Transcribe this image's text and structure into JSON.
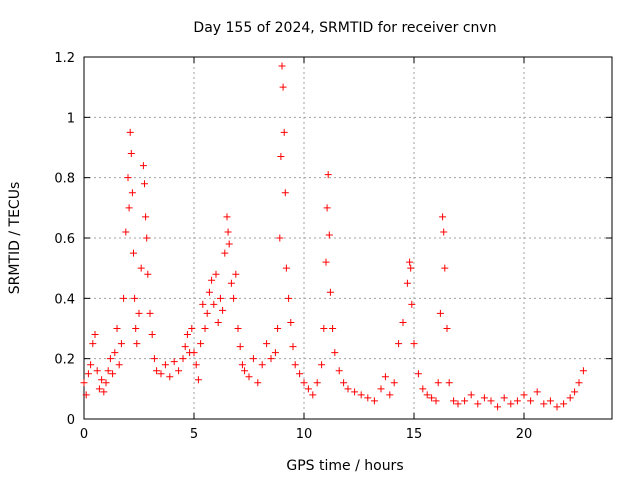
{
  "chart_data": {
    "type": "scatter",
    "title": "Day 155 of 2024, SRMTID for receiver cnvn",
    "xlabel": "GPS time / hours",
    "ylabel": "SRMTID / TECUs",
    "xlim": [
      0,
      24
    ],
    "ylim": [
      0,
      1.2
    ],
    "xticks": [
      0,
      5,
      10,
      15,
      20
    ],
    "yticks": [
      0,
      0.2,
      0.4,
      0.6,
      0.8,
      1.0,
      1.2
    ],
    "xtick_labels": [
      "0",
      "5",
      "10",
      "15",
      "20"
    ],
    "ytick_labels": [
      "0",
      "0.2",
      "0.4",
      "0.6",
      "0.8",
      "1",
      "1.2"
    ],
    "grid": true,
    "marker": "+",
    "color": "#ff0000",
    "series": [
      {
        "name": "SRMTID",
        "points": [
          [
            0.0,
            0.12
          ],
          [
            0.1,
            0.08
          ],
          [
            0.2,
            0.15
          ],
          [
            0.3,
            0.18
          ],
          [
            0.4,
            0.25
          ],
          [
            0.5,
            0.28
          ],
          [
            0.6,
            0.16
          ],
          [
            0.7,
            0.1
          ],
          [
            0.8,
            0.13
          ],
          [
            0.9,
            0.09
          ],
          [
            1.0,
            0.12
          ],
          [
            1.1,
            0.16
          ],
          [
            1.2,
            0.2
          ],
          [
            1.3,
            0.15
          ],
          [
            1.4,
            0.22
          ],
          [
            1.5,
            0.3
          ],
          [
            1.6,
            0.18
          ],
          [
            1.7,
            0.25
          ],
          [
            1.8,
            0.4
          ],
          [
            1.9,
            0.62
          ],
          [
            2.0,
            0.8
          ],
          [
            2.05,
            0.7
          ],
          [
            2.1,
            0.95
          ],
          [
            2.15,
            0.88
          ],
          [
            2.2,
            0.75
          ],
          [
            2.25,
            0.55
          ],
          [
            2.3,
            0.4
          ],
          [
            2.35,
            0.3
          ],
          [
            2.4,
            0.25
          ],
          [
            2.5,
            0.35
          ],
          [
            2.6,
            0.5
          ],
          [
            2.7,
            0.84
          ],
          [
            2.75,
            0.78
          ],
          [
            2.8,
            0.67
          ],
          [
            2.85,
            0.6
          ],
          [
            2.9,
            0.48
          ],
          [
            3.0,
            0.35
          ],
          [
            3.1,
            0.28
          ],
          [
            3.2,
            0.2
          ],
          [
            3.3,
            0.16
          ],
          [
            3.5,
            0.15
          ],
          [
            3.7,
            0.18
          ],
          [
            3.9,
            0.14
          ],
          [
            4.1,
            0.19
          ],
          [
            4.3,
            0.16
          ],
          [
            4.5,
            0.2
          ],
          [
            4.6,
            0.24
          ],
          [
            4.7,
            0.28
          ],
          [
            4.8,
            0.22
          ],
          [
            4.9,
            0.3
          ],
          [
            5.0,
            0.22
          ],
          [
            5.1,
            0.18
          ],
          [
            5.2,
            0.13
          ],
          [
            5.3,
            0.25
          ],
          [
            5.4,
            0.38
          ],
          [
            5.5,
            0.3
          ],
          [
            5.6,
            0.35
          ],
          [
            5.7,
            0.42
          ],
          [
            5.8,
            0.46
          ],
          [
            5.9,
            0.38
          ],
          [
            6.0,
            0.48
          ],
          [
            6.1,
            0.32
          ],
          [
            6.2,
            0.4
          ],
          [
            6.3,
            0.36
          ],
          [
            6.4,
            0.55
          ],
          [
            6.5,
            0.67
          ],
          [
            6.55,
            0.62
          ],
          [
            6.6,
            0.58
          ],
          [
            6.7,
            0.45
          ],
          [
            6.8,
            0.4
          ],
          [
            6.9,
            0.48
          ],
          [
            7.0,
            0.3
          ],
          [
            7.1,
            0.24
          ],
          [
            7.2,
            0.18
          ],
          [
            7.3,
            0.16
          ],
          [
            7.5,
            0.14
          ],
          [
            7.7,
            0.2
          ],
          [
            7.9,
            0.12
          ],
          [
            8.1,
            0.18
          ],
          [
            8.3,
            0.25
          ],
          [
            8.5,
            0.2
          ],
          [
            8.7,
            0.22
          ],
          [
            8.8,
            0.3
          ],
          [
            8.9,
            0.6
          ],
          [
            8.95,
            0.87
          ],
          [
            9.0,
            1.17
          ],
          [
            9.05,
            1.1
          ],
          [
            9.1,
            0.95
          ],
          [
            9.15,
            0.75
          ],
          [
            9.2,
            0.5
          ],
          [
            9.3,
            0.4
          ],
          [
            9.4,
            0.32
          ],
          [
            9.5,
            0.24
          ],
          [
            9.6,
            0.18
          ],
          [
            9.8,
            0.15
          ],
          [
            10.0,
            0.12
          ],
          [
            10.2,
            0.1
          ],
          [
            10.4,
            0.08
          ],
          [
            10.6,
            0.12
          ],
          [
            10.8,
            0.18
          ],
          [
            10.9,
            0.3
          ],
          [
            11.0,
            0.52
          ],
          [
            11.05,
            0.7
          ],
          [
            11.1,
            0.81
          ],
          [
            11.15,
            0.61
          ],
          [
            11.2,
            0.42
          ],
          [
            11.3,
            0.3
          ],
          [
            11.4,
            0.22
          ],
          [
            11.6,
            0.16
          ],
          [
            11.8,
            0.12
          ],
          [
            12.0,
            0.1
          ],
          [
            12.3,
            0.09
          ],
          [
            12.6,
            0.08
          ],
          [
            12.9,
            0.07
          ],
          [
            13.2,
            0.06
          ],
          [
            13.5,
            0.1
          ],
          [
            13.7,
            0.14
          ],
          [
            13.9,
            0.08
          ],
          [
            14.1,
            0.12
          ],
          [
            14.3,
            0.25
          ],
          [
            14.5,
            0.32
          ],
          [
            14.7,
            0.45
          ],
          [
            14.8,
            0.52
          ],
          [
            14.85,
            0.5
          ],
          [
            14.9,
            0.38
          ],
          [
            15.0,
            0.25
          ],
          [
            15.2,
            0.15
          ],
          [
            15.4,
            0.1
          ],
          [
            15.6,
            0.08
          ],
          [
            15.8,
            0.07
          ],
          [
            16.0,
            0.06
          ],
          [
            16.1,
            0.12
          ],
          [
            16.2,
            0.35
          ],
          [
            16.3,
            0.67
          ],
          [
            16.35,
            0.62
          ],
          [
            16.4,
            0.5
          ],
          [
            16.5,
            0.3
          ],
          [
            16.6,
            0.12
          ],
          [
            16.8,
            0.06
          ],
          [
            17.0,
            0.05
          ],
          [
            17.3,
            0.06
          ],
          [
            17.6,
            0.08
          ],
          [
            17.9,
            0.05
          ],
          [
            18.2,
            0.07
          ],
          [
            18.5,
            0.06
          ],
          [
            18.8,
            0.04
          ],
          [
            19.1,
            0.07
          ],
          [
            19.4,
            0.05
          ],
          [
            19.7,
            0.06
          ],
          [
            20.0,
            0.08
          ],
          [
            20.3,
            0.06
          ],
          [
            20.6,
            0.09
          ],
          [
            20.9,
            0.05
          ],
          [
            21.2,
            0.06
          ],
          [
            21.5,
            0.04
          ],
          [
            21.8,
            0.05
          ],
          [
            22.1,
            0.07
          ],
          [
            22.3,
            0.09
          ],
          [
            22.5,
            0.12
          ],
          [
            22.7,
            0.16
          ]
        ]
      }
    ]
  }
}
